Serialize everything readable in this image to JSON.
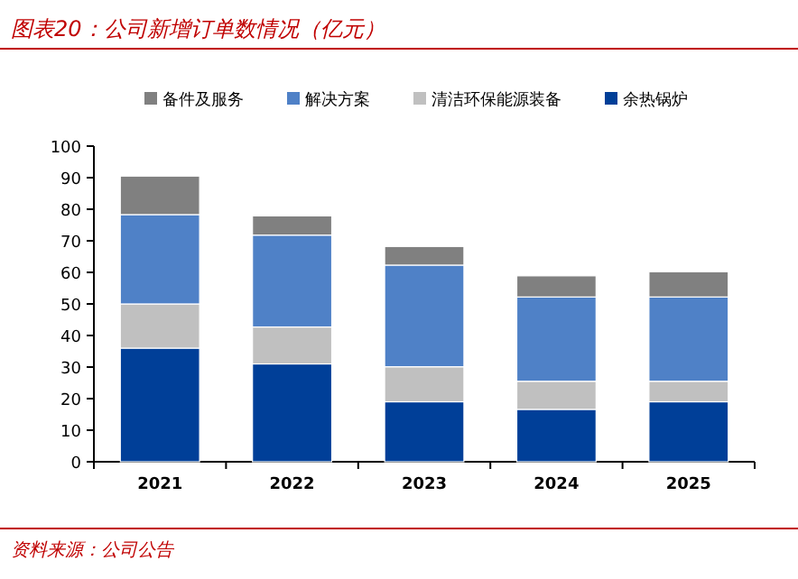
{
  "chart_data": {
    "type": "bar",
    "stacked": true,
    "title": "图表20：公司新增订单数情况（亿元）",
    "annotations": [
      "资料来源：公司公告"
    ],
    "categories": [
      "2021",
      "2022",
      "2023",
      "2024",
      "2025"
    ],
    "series": [
      {
        "name": "余热锅炉",
        "color": "#003f98",
        "values": [
          36,
          31,
          19,
          16.6,
          19
        ]
      },
      {
        "name": "清洁环保能源装备",
        "color": "#c0c0c0",
        "values": [
          14,
          11.7,
          11.1,
          8.9,
          6.5
        ]
      },
      {
        "name": "解决方案",
        "color": "#4f81c7",
        "values": [
          28.3,
          29.1,
          32.2,
          26.7,
          26.7
        ]
      },
      {
        "name": "备件及服务",
        "color": "#808080",
        "values": [
          12.2,
          6.1,
          5.9,
          6.7,
          8
        ]
      }
    ],
    "ylim": [
      0,
      100
    ],
    "yticks": [
      0,
      10,
      20,
      30,
      40,
      50,
      60,
      70,
      80,
      90,
      100
    ],
    "grid": false,
    "legend": "top"
  }
}
